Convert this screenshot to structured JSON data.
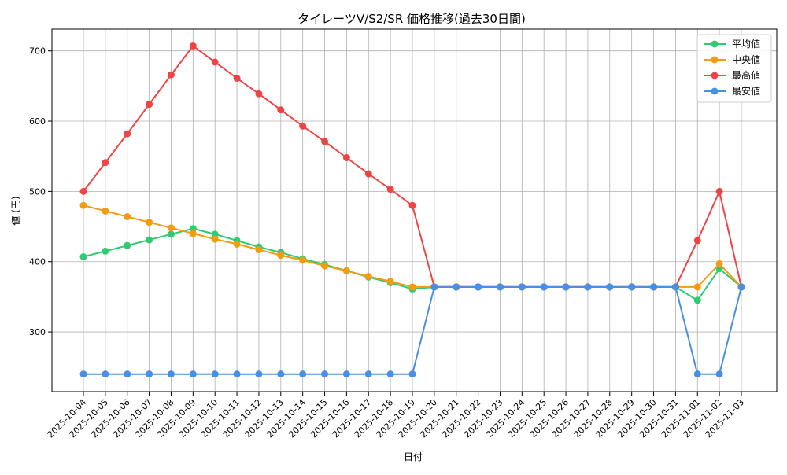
{
  "chart_data": {
    "type": "line",
    "title": "タイレーツV/S2/SR 価格推移(過去30日間)",
    "xlabel": "日付",
    "ylabel": "値 (円)",
    "ylim": [
      215,
      731
    ],
    "yticks": [
      300,
      400,
      500,
      600,
      700
    ],
    "grid": true,
    "legend_position": "top-right",
    "categories": [
      "2025-10-04",
      "2025-10-05",
      "2025-10-06",
      "2025-10-07",
      "2025-10-08",
      "2025-10-09",
      "2025-10-10",
      "2025-10-11",
      "2025-10-12",
      "2025-10-13",
      "2025-10-14",
      "2025-10-15",
      "2025-10-16",
      "2025-10-17",
      "2025-10-18",
      "2025-10-19",
      "2025-10-20",
      "2025-10-21",
      "2025-10-22",
      "2025-10-23",
      "2025-10-24",
      "2025-10-25",
      "2025-10-26",
      "2025-10-27",
      "2025-10-28",
      "2025-10-29",
      "2025-10-30",
      "2025-10-31",
      "2025-11-01",
      "2025-11-02",
      "2025-11-03"
    ],
    "series": [
      {
        "name": "平均値",
        "color": "#2ecc71",
        "values": [
          407,
          415,
          423,
          431,
          439,
          447,
          439,
          430,
          421,
          413,
          404,
          396,
          387,
          378,
          370,
          361,
          364,
          364,
          364,
          364,
          364,
          364,
          364,
          364,
          364,
          364,
          364,
          364,
          345,
          390,
          364
        ]
      },
      {
        "name": "中央値",
        "color": "#f39c12",
        "values": [
          480,
          472,
          464,
          456,
          448,
          440,
          432,
          425,
          417,
          409,
          402,
          394,
          387,
          379,
          372,
          364,
          364,
          364,
          364,
          364,
          364,
          364,
          364,
          364,
          364,
          364,
          364,
          364,
          364,
          397,
          364
        ]
      },
      {
        "name": "最高値",
        "color": "#ef4444",
        "values": [
          500,
          541,
          582,
          624,
          666,
          707,
          684,
          661,
          639,
          616,
          593,
          571,
          548,
          525,
          503,
          480,
          364,
          364,
          364,
          364,
          364,
          364,
          364,
          364,
          364,
          364,
          364,
          364,
          430,
          500,
          364
        ]
      },
      {
        "name": "最安値",
        "color": "#4a90e2",
        "values": [
          240,
          240,
          240,
          240,
          240,
          240,
          240,
          240,
          240,
          240,
          240,
          240,
          240,
          240,
          240,
          240,
          364,
          364,
          364,
          364,
          364,
          364,
          364,
          364,
          364,
          364,
          364,
          364,
          240,
          240,
          364
        ]
      }
    ]
  }
}
